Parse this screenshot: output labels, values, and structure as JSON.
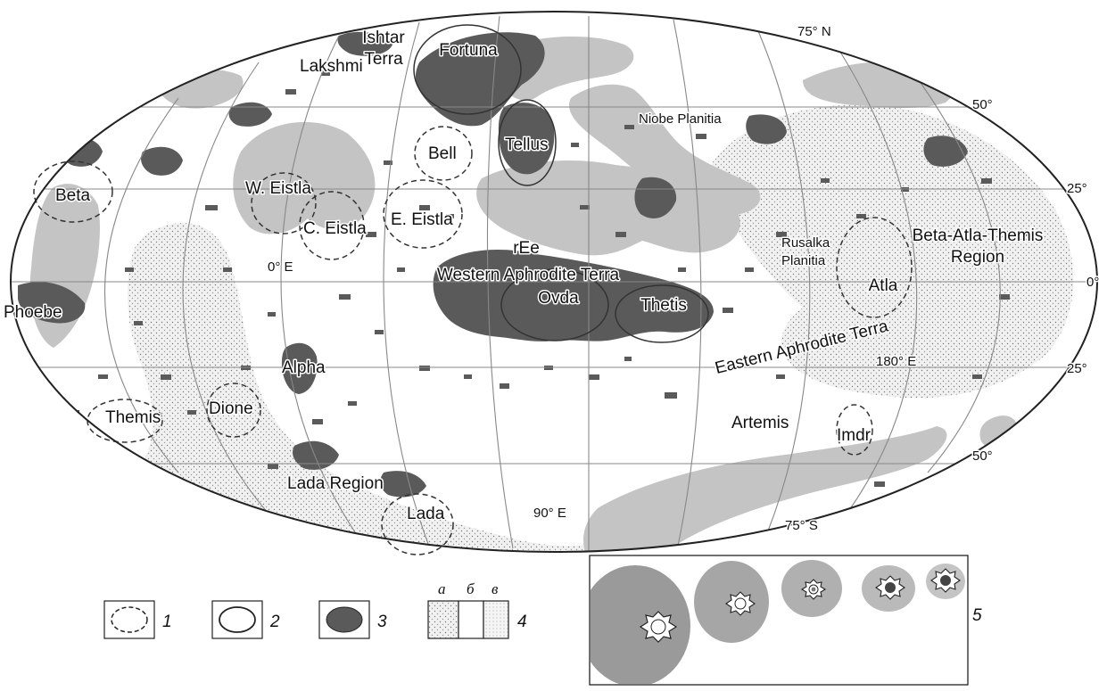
{
  "map": {
    "labels": {
      "ishtar": "Ishtar\nTerra",
      "fortuna": "Fortuna",
      "lakshmi": "Lakshmi",
      "beta": "Beta",
      "w_eistla": "W. Eistla",
      "c_eistla": "C. Eistla",
      "e_eistla": "E. Eistla",
      "bell": "Bell",
      "tellus": "Tellus",
      "niobe": "Niobe Planitia",
      "ree": "rEe",
      "western_aphrodite": "Western Aphrodite Terra",
      "ovda": "Ovda",
      "thetis": "Thetis",
      "rusalka": "Rusalka\nPlanitia",
      "atla": "Atla",
      "bat_region": "Beta-Atla-Themis\nRegion",
      "eastern_aphrodite": "Eastern Aphrodite Terra",
      "phoebe": "Phoebe",
      "alpha": "Alpha",
      "themis": "Themis",
      "dione": "Dione",
      "artemis": "Artemis",
      "imdr": "Imdr",
      "lada_region": "Lada Region",
      "lada": "Lada"
    },
    "graticule_labels": {
      "n75": "75° N",
      "n50": "50°",
      "n25": "25°",
      "eq": "0°",
      "s25": "25°",
      "s50": "50°",
      "s75": "75° S",
      "e0": "0° E",
      "e90": "90° E",
      "e180": "180° E"
    },
    "colors": {
      "tessera": "#5a5a5a",
      "region_a": "#d6d6d6",
      "region_c": "#bdbdbd",
      "outline": "#333333"
    }
  },
  "legend": {
    "items": [
      {
        "num": "1",
        "symbol": "dashed-ellipse"
      },
      {
        "num": "2",
        "symbol": "solid-ellipse"
      },
      {
        "num": "3",
        "symbol": "filled-ellipse"
      },
      {
        "num": "4",
        "symbol": "three-panel",
        "sub": [
          "а",
          "б",
          "в"
        ]
      }
    ],
    "inset_num": "5",
    "inset_stages": [
      "stage-1",
      "stage-2",
      "stage-3",
      "stage-4",
      "stage-5"
    ]
  }
}
